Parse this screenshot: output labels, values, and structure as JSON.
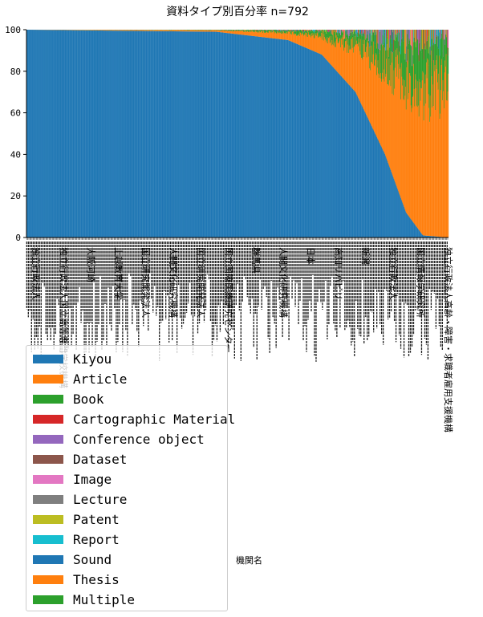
{
  "chart_data": {
    "type": "bar",
    "stacked": true,
    "title": "資料タイプ別百分率 n=792",
    "xlabel": "機関名",
    "ylabel": "",
    "ylim": [
      0,
      100
    ],
    "yticks": [
      0,
      20,
      40,
      60,
      80,
      100
    ],
    "n_categories": 792,
    "category_labels_legible": false,
    "visible_category_labels": [
      "独立行政法人",
      "独立行政法人国立高等専門学校機構",
      "大阪河崎",
      "上越教育大学",
      "国立研究開発法人",
      "人間文化研究機構",
      "国立研究開発法人",
      "国立国際医療研究センター",
      "群馬県",
      "人間文化研究機構",
      "日本",
      "高知リハビリ",
      "新潟",
      "独立行政法人",
      "国立情報学研究所",
      "独立行政法人高齢・障害・求職者雇用支援機構"
    ],
    "legend_position": "lower-left",
    "series": [
      {
        "name": "Kiyou",
        "color": "#1f77b4"
      },
      {
        "name": "Article",
        "color": "#ff7f0e"
      },
      {
        "name": "Book",
        "color": "#2ca02c"
      },
      {
        "name": "Cartographic Material",
        "color": "#d62728"
      },
      {
        "name": "Conference object",
        "color": "#9467bd"
      },
      {
        "name": "Dataset",
        "color": "#8c564b"
      },
      {
        "name": "Image",
        "color": "#e377c2"
      },
      {
        "name": "Lecture",
        "color": "#7f7f7f"
      },
      {
        "name": "Patent",
        "color": "#bcbd22"
      },
      {
        "name": "Report",
        "color": "#17becf"
      },
      {
        "name": "Sound",
        "color": "#1f77b4"
      },
      {
        "name": "Thesis",
        "color": "#ff7f0e"
      },
      {
        "name": "Multiple",
        "color": "#2ca02c"
      }
    ],
    "kiyou_share_profile": [
      {
        "position": 0.0,
        "percent": 100
      },
      {
        "position": 0.45,
        "percent": 99
      },
      {
        "position": 0.62,
        "percent": 95
      },
      {
        "position": 0.7,
        "percent": 88
      },
      {
        "position": 0.78,
        "percent": 70
      },
      {
        "position": 0.85,
        "percent": 40
      },
      {
        "position": 0.9,
        "percent": 12
      },
      {
        "position": 0.94,
        "percent": 1
      },
      {
        "position": 1.0,
        "percent": 0
      }
    ]
  }
}
